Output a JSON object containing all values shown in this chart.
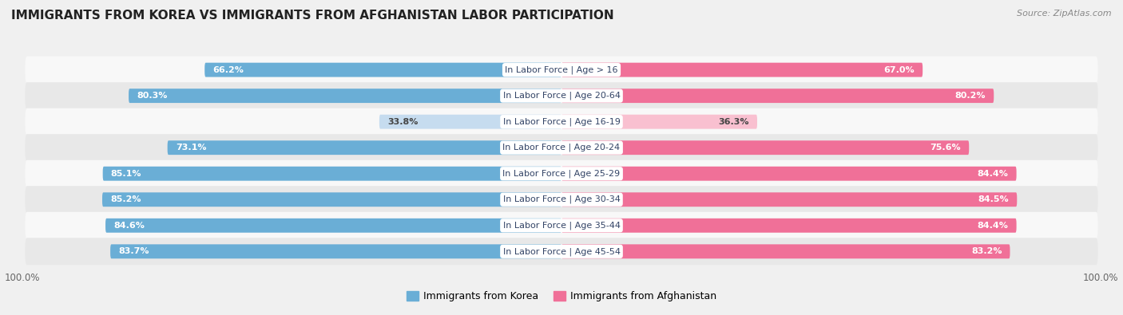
{
  "title": "IMMIGRANTS FROM KOREA VS IMMIGRANTS FROM AFGHANISTAN LABOR PARTICIPATION",
  "source": "Source: ZipAtlas.com",
  "categories": [
    "In Labor Force | Age > 16",
    "In Labor Force | Age 20-64",
    "In Labor Force | Age 16-19",
    "In Labor Force | Age 20-24",
    "In Labor Force | Age 25-29",
    "In Labor Force | Age 30-34",
    "In Labor Force | Age 35-44",
    "In Labor Force | Age 45-54"
  ],
  "korea_values": [
    66.2,
    80.3,
    33.8,
    73.1,
    85.1,
    85.2,
    84.6,
    83.7
  ],
  "afghanistan_values": [
    67.0,
    80.2,
    36.3,
    75.6,
    84.4,
    84.5,
    84.4,
    83.2
  ],
  "korea_color": "#6aaed6",
  "korea_color_light": "#c6dcef",
  "afghanistan_color": "#f07098",
  "afghanistan_color_light": "#f9c0d0",
  "bg_color": "#f0f0f0",
  "row_bg_light": "#f8f8f8",
  "row_bg_dark": "#e8e8e8",
  "max_value": 100.0,
  "legend_korea": "Immigrants from Korea",
  "legend_afghanistan": "Immigrants from Afghanistan",
  "label_threshold": 50.0
}
